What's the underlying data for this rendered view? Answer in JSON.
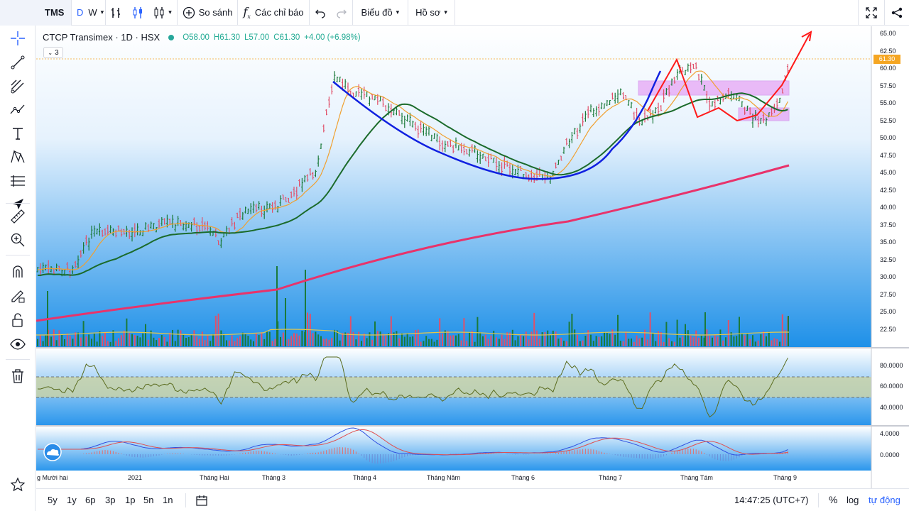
{
  "toolbar": {
    "symbol": "TMS",
    "interval_d": "D",
    "interval_w": "W",
    "compare_label": "So sánh",
    "indicators_label": "Các chỉ báo",
    "charts_label": "Biểu đồ",
    "profile_label": "Hồ sơ"
  },
  "legend": {
    "title": "CTCP Transimex · 1D · HSX",
    "open": "O58.00",
    "high": "H61.30",
    "low": "L57.00",
    "close": "C61.30",
    "change": "+4.00 (+6.98%)",
    "indicator_count": "3"
  },
  "price_axis": {
    "ticks": [
      "65.00",
      "62.50",
      "60.00",
      "57.50",
      "55.00",
      "52.50",
      "50.00",
      "47.50",
      "45.00",
      "42.50",
      "40.00",
      "37.50",
      "35.00",
      "32.50",
      "30.00",
      "27.50",
      "25.00",
      "22.50"
    ],
    "last_price": "61.30"
  },
  "rsi_axis": {
    "ticks": [
      "80.0000",
      "60.0000",
      "40.0000"
    ]
  },
  "macd_axis": {
    "ticks": [
      "4.0000",
      "0.0000"
    ]
  },
  "time_axis": {
    "labels": [
      "g Mười hai",
      "2021",
      "Tháng Hai",
      "Tháng 3",
      "Tháng 4",
      "Tháng Năm",
      "Tháng 6",
      "Tháng 7",
      "Tháng Tám",
      "Tháng 9"
    ]
  },
  "bottom": {
    "ranges": [
      "5y",
      "1y",
      "6p",
      "3p",
      "1p",
      "5n",
      "1n"
    ],
    "clock": "14:47:25 (UTC+7)",
    "percent": "%",
    "log": "log",
    "auto": "tự động"
  },
  "colors": {
    "up": "#1b7a3a",
    "down": "#e0506a",
    "ma_fast": "#f0a030",
    "ma_mid": "#1b6b2b",
    "ma_slow": "#e8336b",
    "cup": "#1020e0",
    "path": "#ff1a1a",
    "zone": "#e070f0",
    "last": "#f5a623",
    "accent": "#2962ff"
  },
  "icons": [
    "crosshair-icon",
    "trend-line-icon",
    "fib-icon",
    "pattern-icon",
    "text-icon",
    "xabcd-icon",
    "measure-lines-icon",
    "arrow-icon",
    "ruler-icon",
    "zoom-icon",
    "magnet-icon",
    "lock-pen-icon",
    "unlock-icon",
    "eye-icon",
    "trash-icon",
    "star-icon",
    "fullscreen-icon",
    "share-icon",
    "undo-icon",
    "redo-icon",
    "calendar-icon"
  ]
}
